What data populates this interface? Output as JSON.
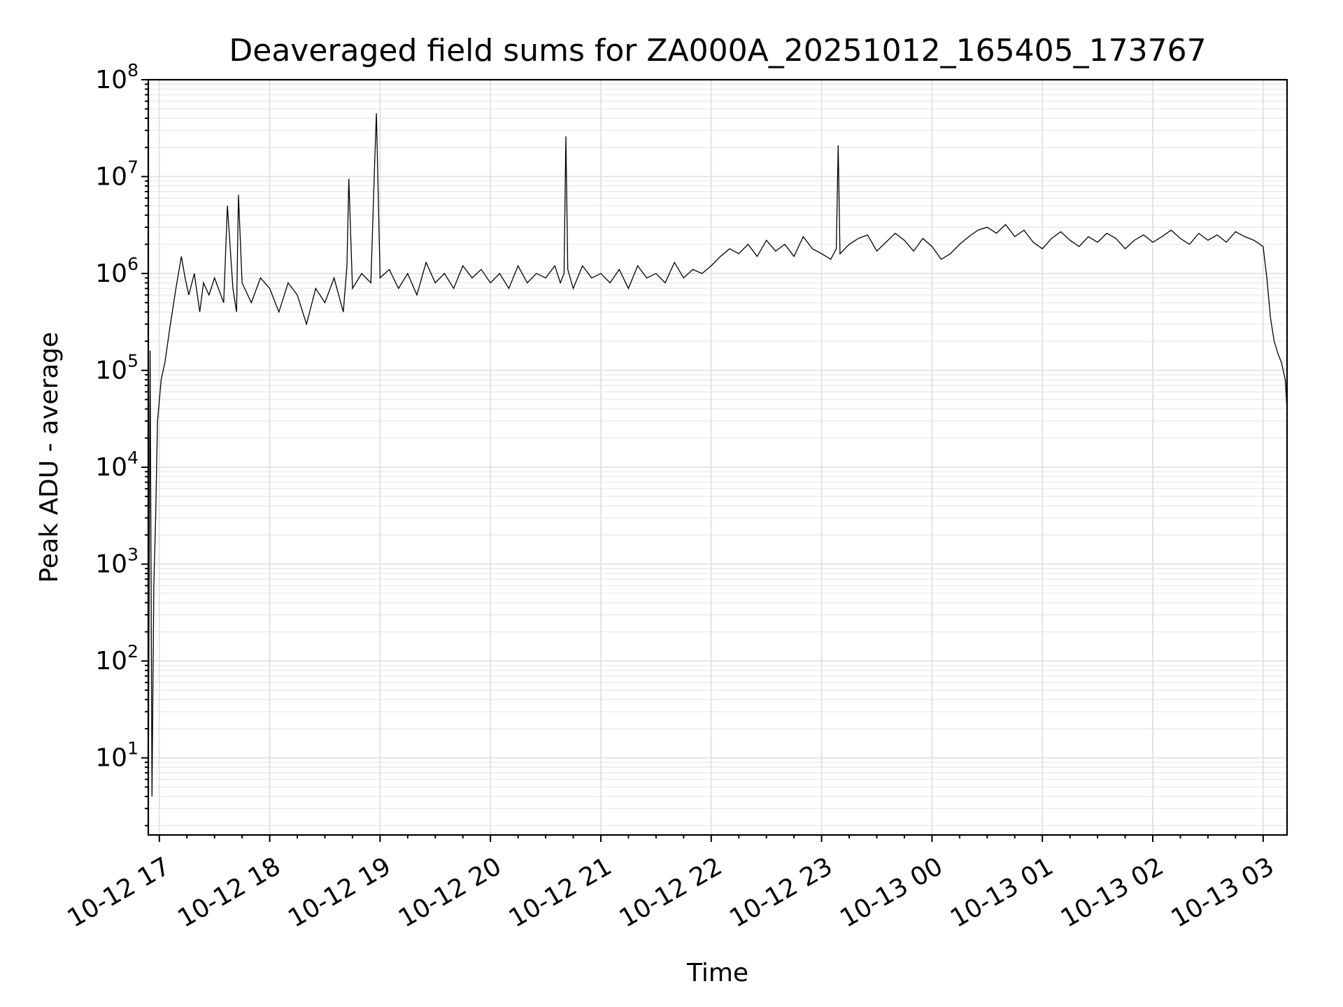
{
  "chart_data": {
    "type": "line",
    "title": "Deaveraged field sums for ZA000A_20251012_165405_173767",
    "xlabel": "Time",
    "ylabel": "Peak ADU - average",
    "xlim": [
      "2025-10-12 16:54",
      "2025-10-13 03:13"
    ],
    "y_scale": "log",
    "ylim": [
      1.6,
      100000000
    ],
    "grid": "major and minor",
    "line_color": "#000000",
    "x_ticks": [
      {
        "label": "10-12 17",
        "time": "2025-10-12 17:00"
      },
      {
        "label": "10-12 18",
        "time": "2025-10-12 18:00"
      },
      {
        "label": "10-12 19",
        "time": "2025-10-12 19:00"
      },
      {
        "label": "10-12 20",
        "time": "2025-10-12 20:00"
      },
      {
        "label": "10-12 21",
        "time": "2025-10-12 21:00"
      },
      {
        "label": "10-12 22",
        "time": "2025-10-12 22:00"
      },
      {
        "label": "10-12 23",
        "time": "2025-10-12 23:00"
      },
      {
        "label": "10-13 00",
        "time": "2025-10-13 00:00"
      },
      {
        "label": "10-13 01",
        "time": "2025-10-13 01:00"
      },
      {
        "label": "10-13 02",
        "time": "2025-10-13 02:00"
      },
      {
        "label": "10-13 03",
        "time": "2025-10-13 03:00"
      }
    ],
    "y_ticks": [
      {
        "base": "10",
        "exp": "1",
        "value": 10
      },
      {
        "base": "10",
        "exp": "2",
        "value": 100
      },
      {
        "base": "10",
        "exp": "3",
        "value": 1000
      },
      {
        "base": "10",
        "exp": "4",
        "value": 10000
      },
      {
        "base": "10",
        "exp": "5",
        "value": 100000
      },
      {
        "base": "10",
        "exp": "6",
        "value": 1000000
      },
      {
        "base": "10",
        "exp": "7",
        "value": 10000000
      },
      {
        "base": "10",
        "exp": "8",
        "value": 100000000
      }
    ],
    "series": [
      {
        "x": [
          "2025-10-12 16:54",
          "2025-10-12 16:55",
          "2025-10-12 16:56",
          "2025-10-12 16:57",
          "2025-10-12 16:58",
          "2025-10-12 16:59",
          "2025-10-12 17:01",
          "2025-10-12 17:03",
          "2025-10-12 17:06",
          "2025-10-12 17:09",
          "2025-10-12 17:12",
          "2025-10-12 17:14",
          "2025-10-12 17:16",
          "2025-10-12 17:19",
          "2025-10-12 17:22",
          "2025-10-12 17:24",
          "2025-10-12 17:27",
          "2025-10-12 17:30",
          "2025-10-12 17:35",
          "2025-10-12 17:37",
          "2025-10-12 17:40",
          "2025-10-12 17:42",
          "2025-10-12 17:43",
          "2025-10-12 17:45",
          "2025-10-12 17:50",
          "2025-10-12 17:55",
          "2025-10-12 18:00",
          "2025-10-12 18:05",
          "2025-10-12 18:10",
          "2025-10-12 18:15",
          "2025-10-12 18:20",
          "2025-10-12 18:25",
          "2025-10-12 18:30",
          "2025-10-12 18:35",
          "2025-10-12 18:40",
          "2025-10-12 18:42",
          "2025-10-12 18:43",
          "2025-10-12 18:45",
          "2025-10-12 18:50",
          "2025-10-12 18:55",
          "2025-10-12 18:57",
          "2025-10-12 18:58",
          "2025-10-12 19:00",
          "2025-10-12 19:05",
          "2025-10-12 19:10",
          "2025-10-12 19:15",
          "2025-10-12 19:20",
          "2025-10-12 19:25",
          "2025-10-12 19:30",
          "2025-10-12 19:35",
          "2025-10-12 19:40",
          "2025-10-12 19:45",
          "2025-10-12 19:50",
          "2025-10-12 19:55",
          "2025-10-12 20:00",
          "2025-10-12 20:05",
          "2025-10-12 20:10",
          "2025-10-12 20:15",
          "2025-10-12 20:20",
          "2025-10-12 20:25",
          "2025-10-12 20:30",
          "2025-10-12 20:35",
          "2025-10-12 20:38",
          "2025-10-12 20:40",
          "2025-10-12 20:41",
          "2025-10-12 20:42",
          "2025-10-12 20:45",
          "2025-10-12 20:50",
          "2025-10-12 20:55",
          "2025-10-12 21:00",
          "2025-10-12 21:05",
          "2025-10-12 21:10",
          "2025-10-12 21:15",
          "2025-10-12 21:20",
          "2025-10-12 21:25",
          "2025-10-12 21:30",
          "2025-10-12 21:35",
          "2025-10-12 21:40",
          "2025-10-12 21:45",
          "2025-10-12 21:50",
          "2025-10-12 21:55",
          "2025-10-12 22:00",
          "2025-10-12 22:05",
          "2025-10-12 22:10",
          "2025-10-12 22:15",
          "2025-10-12 22:20",
          "2025-10-12 22:25",
          "2025-10-12 22:30",
          "2025-10-12 22:35",
          "2025-10-12 22:40",
          "2025-10-12 22:45",
          "2025-10-12 22:50",
          "2025-10-12 22:55",
          "2025-10-12 23:00",
          "2025-10-12 23:05",
          "2025-10-12 23:08",
          "2025-10-12 23:09",
          "2025-10-12 23:10",
          "2025-10-12 23:15",
          "2025-10-12 23:20",
          "2025-10-12 23:25",
          "2025-10-12 23:30",
          "2025-10-12 23:35",
          "2025-10-12 23:40",
          "2025-10-12 23:45",
          "2025-10-12 23:50",
          "2025-10-12 23:55",
          "2025-10-13 00:00",
          "2025-10-13 00:05",
          "2025-10-13 00:10",
          "2025-10-13 00:15",
          "2025-10-13 00:20",
          "2025-10-13 00:25",
          "2025-10-13 00:30",
          "2025-10-13 00:35",
          "2025-10-13 00:40",
          "2025-10-13 00:45",
          "2025-10-13 00:50",
          "2025-10-13 00:55",
          "2025-10-13 01:00",
          "2025-10-13 01:05",
          "2025-10-13 01:10",
          "2025-10-13 01:15",
          "2025-10-13 01:20",
          "2025-10-13 01:25",
          "2025-10-13 01:30",
          "2025-10-13 01:35",
          "2025-10-13 01:40",
          "2025-10-13 01:45",
          "2025-10-13 01:50",
          "2025-10-13 01:55",
          "2025-10-13 02:00",
          "2025-10-13 02:05",
          "2025-10-13 02:10",
          "2025-10-13 02:15",
          "2025-10-13 02:20",
          "2025-10-13 02:25",
          "2025-10-13 02:30",
          "2025-10-13 02:35",
          "2025-10-13 02:40",
          "2025-10-13 02:45",
          "2025-10-13 02:50",
          "2025-10-13 02:55",
          "2025-10-13 03:00",
          "2025-10-13 03:02",
          "2025-10-13 03:04",
          "2025-10-13 03:06",
          "2025-10-13 03:08",
          "2025-10-13 03:10",
          "2025-10-13 03:12",
          "2025-10-13 03:13"
        ],
        "y": [
          3.8,
          160000,
          4,
          600,
          3000,
          30000,
          80000,
          120000,
          300000,
          700000,
          1500000,
          900000,
          600000,
          1000000,
          400000,
          800000,
          600000,
          900000,
          500000,
          5000000,
          700000,
          400000,
          6500000,
          800000,
          500000,
          900000,
          700000,
          400000,
          800000,
          600000,
          300000,
          700000,
          500000,
          900000,
          400000,
          1200000,
          9500000,
          700000,
          1000000,
          800000,
          13000000,
          45000000,
          900000,
          1100000,
          700000,
          1000000,
          600000,
          1300000,
          800000,
          1000000,
          700000,
          1200000,
          900000,
          1100000,
          800000,
          1000000,
          700000,
          1200000,
          800000,
          1000000,
          900000,
          1200000,
          800000,
          1000000,
          26000000,
          1100000,
          700000,
          1200000,
          900000,
          1000000,
          800000,
          1100000,
          700000,
          1200000,
          900000,
          1000000,
          800000,
          1300000,
          900000,
          1100000,
          1000000,
          1200000,
          1500000,
          1800000,
          1600000,
          2000000,
          1500000,
          2200000,
          1700000,
          2000000,
          1500000,
          2400000,
          1800000,
          1600000,
          1400000,
          1800000,
          21000000,
          1600000,
          2000000,
          2300000,
          2500000,
          1700000,
          2100000,
          2600000,
          2200000,
          1700000,
          2300000,
          1900000,
          1400000,
          1600000,
          2000000,
          2400000,
          2800000,
          3000000,
          2600000,
          3200000,
          2400000,
          2800000,
          2100000,
          1800000,
          2300000,
          2700000,
          2200000,
          1900000,
          2400000,
          2100000,
          2600000,
          2300000,
          1800000,
          2200000,
          2500000,
          2100000,
          2400000,
          2800000,
          2300000,
          2000000,
          2600000,
          2200000,
          2500000,
          2100000,
          2700000,
          2400000,
          2200000,
          1900000,
          900000,
          350000,
          200000,
          150000,
          120000,
          80000,
          40000
        ]
      }
    ]
  }
}
